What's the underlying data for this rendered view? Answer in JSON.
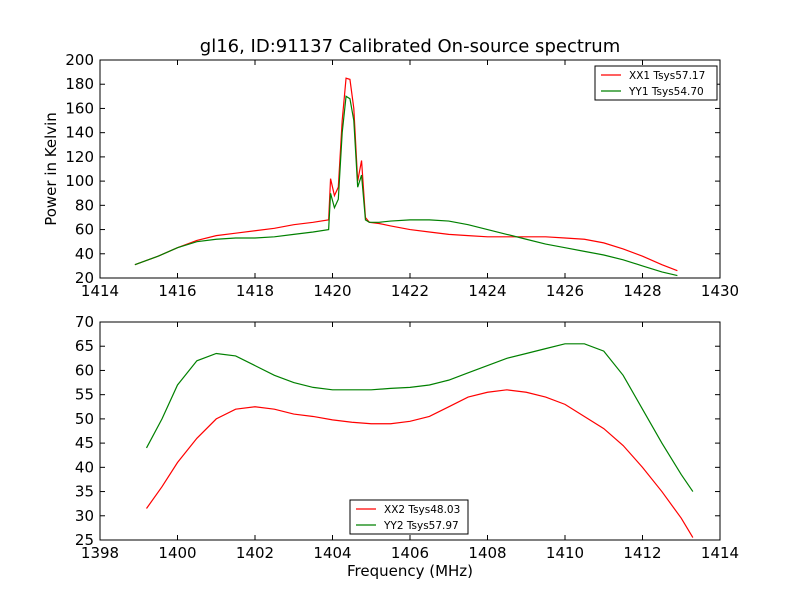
{
  "chart_data": [
    {
      "type": "line",
      "title": "gl16, ID:91137 Calibrated On-source spectrum",
      "xlabel": "",
      "ylabel": "Power in Kelvin",
      "xlim": [
        1414,
        1430
      ],
      "ylim": [
        20,
        200
      ],
      "xticks": [
        1414,
        1416,
        1418,
        1420,
        1422,
        1424,
        1426,
        1428,
        1430
      ],
      "yticks": [
        20,
        40,
        60,
        80,
        100,
        120,
        140,
        160,
        180,
        200
      ],
      "legend_position": "top-right",
      "series": [
        {
          "name": "XX1 Tsys57.17",
          "color": "#ff0000",
          "x": [
            1414.9,
            1415.5,
            1416.0,
            1416.5,
            1417.0,
            1417.5,
            1418.0,
            1418.5,
            1419.0,
            1419.5,
            1419.9,
            1419.95,
            1420.05,
            1420.15,
            1420.25,
            1420.35,
            1420.45,
            1420.55,
            1420.65,
            1420.75,
            1420.85,
            1420.95,
            1421.2,
            1421.5,
            1422.0,
            1422.5,
            1423.0,
            1423.5,
            1424.0,
            1424.5,
            1425.0,
            1425.5,
            1426.0,
            1426.5,
            1427.0,
            1427.5,
            1428.0,
            1428.5,
            1428.9
          ],
          "y": [
            31,
            38,
            45,
            51,
            55,
            57,
            59,
            61,
            64,
            66,
            68,
            102,
            88,
            95,
            150,
            185,
            184,
            160,
            100,
            117,
            70,
            66,
            65,
            63,
            60,
            58,
            56,
            55,
            54,
            54,
            54,
            54,
            53,
            52,
            49,
            44,
            38,
            31,
            26
          ]
        },
        {
          "name": "YY1 Tsys54.70",
          "color": "#008000",
          "x": [
            1414.9,
            1415.5,
            1416.0,
            1416.5,
            1417.0,
            1417.5,
            1418.0,
            1418.5,
            1419.0,
            1419.5,
            1419.9,
            1419.95,
            1420.05,
            1420.15,
            1420.25,
            1420.35,
            1420.45,
            1420.55,
            1420.65,
            1420.75,
            1420.85,
            1420.95,
            1421.2,
            1421.5,
            1422.0,
            1422.5,
            1423.0,
            1423.5,
            1424.0,
            1424.5,
            1425.0,
            1425.5,
            1426.0,
            1426.5,
            1427.0,
            1427.5,
            1428.0,
            1428.5,
            1428.9
          ],
          "y": [
            31,
            38,
            45,
            50,
            52,
            53,
            53,
            54,
            56,
            58,
            60,
            90,
            78,
            85,
            140,
            170,
            168,
            150,
            95,
            105,
            68,
            66,
            66,
            67,
            68,
            68,
            67,
            64,
            60,
            56,
            52,
            48,
            45,
            42,
            39,
            35,
            30,
            25,
            22
          ]
        }
      ]
    },
    {
      "type": "line",
      "title": "",
      "xlabel": "Frequency (MHz)",
      "ylabel": "",
      "xlim": [
        1398,
        1414
      ],
      "ylim": [
        25,
        70
      ],
      "xticks": [
        1398,
        1400,
        1402,
        1404,
        1406,
        1408,
        1410,
        1412,
        1414
      ],
      "yticks": [
        25,
        30,
        35,
        40,
        45,
        50,
        55,
        60,
        65,
        70
      ],
      "legend_position": "lower-center",
      "series": [
        {
          "name": "XX2 Tsys48.03",
          "color": "#ff0000",
          "x": [
            1399.2,
            1399.6,
            1400.0,
            1400.5,
            1401.0,
            1401.5,
            1402.0,
            1402.5,
            1403.0,
            1403.5,
            1404.0,
            1404.5,
            1405.0,
            1405.5,
            1406.0,
            1406.5,
            1407.0,
            1407.5,
            1408.0,
            1408.5,
            1409.0,
            1409.5,
            1410.0,
            1410.5,
            1411.0,
            1411.5,
            1412.0,
            1412.5,
            1413.0,
            1413.3
          ],
          "y": [
            31.5,
            36,
            41,
            46,
            50,
            52,
            52.5,
            52,
            51,
            50.5,
            49.8,
            49.3,
            49,
            49,
            49.5,
            50.5,
            52.5,
            54.5,
            55.5,
            56,
            55.5,
            54.5,
            53,
            50.5,
            48,
            44.5,
            40,
            35,
            29.5,
            25.5
          ]
        },
        {
          "name": "YY2 Tsys57.97",
          "color": "#008000",
          "x": [
            1399.2,
            1399.6,
            1400.0,
            1400.5,
            1401.0,
            1401.5,
            1402.0,
            1402.5,
            1403.0,
            1403.5,
            1404.0,
            1404.5,
            1405.0,
            1405.5,
            1406.0,
            1406.5,
            1407.0,
            1407.5,
            1408.0,
            1408.5,
            1409.0,
            1409.5,
            1410.0,
            1410.5,
            1411.0,
            1411.5,
            1412.0,
            1412.5,
            1413.0,
            1413.3
          ],
          "y": [
            44,
            50,
            57,
            62,
            63.5,
            63,
            61,
            59,
            57.5,
            56.5,
            56,
            56,
            56,
            56.3,
            56.5,
            57,
            58,
            59.5,
            61,
            62.5,
            63.5,
            64.5,
            65.5,
            65.5,
            64,
            59,
            52,
            45,
            38.5,
            35
          ]
        }
      ]
    }
  ]
}
